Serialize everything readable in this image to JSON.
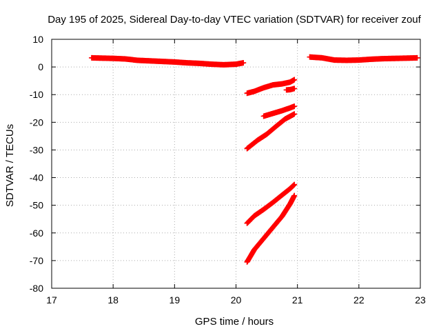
{
  "chart_data": {
    "type": "scatter",
    "title": "Day 195 of 2025, Sidereal Day-to-day VTEC variation (SDTVAR) for receiver zouf",
    "xlabel": "GPS time / hours",
    "ylabel": "SDTVAR / TECUs",
    "xlim": [
      17,
      23
    ],
    "ylim": [
      -80,
      10
    ],
    "xticks": [
      "17",
      "18",
      "19",
      "20",
      "21",
      "22",
      "23"
    ],
    "yticks": [
      "10",
      "0",
      "-10",
      "-20",
      "-30",
      "-40",
      "-50",
      "-60",
      "-70",
      "-80"
    ],
    "grid": true,
    "marker": "plus",
    "color": "#ff0000",
    "series": [
      {
        "x": [
          17.65,
          17.8,
          18.0,
          18.2,
          18.4,
          18.6,
          18.8,
          19.0,
          19.2,
          19.4,
          19.6,
          19.8,
          20.0,
          20.12
        ],
        "y": [
          3.3,
          3.2,
          3.1,
          2.9,
          2.4,
          2.2,
          2.0,
          1.8,
          1.5,
          1.3,
          1.0,
          0.8,
          1.0,
          1.5
        ]
      },
      {
        "x": [
          21.2,
          21.4,
          21.6,
          21.8,
          22.0,
          22.2,
          22.4,
          22.6,
          22.8,
          22.95
        ],
        "y": [
          3.6,
          3.3,
          2.5,
          2.4,
          2.5,
          2.8,
          3.0,
          3.1,
          3.2,
          3.3
        ]
      },
      {
        "x": [
          20.18,
          20.3,
          20.45,
          20.6,
          20.75,
          20.88,
          20.95
        ],
        "y": [
          -9.5,
          -8.8,
          -7.5,
          -6.5,
          -6.1,
          -5.5,
          -4.6
        ]
      },
      {
        "x": [
          20.82,
          20.88,
          20.95
        ],
        "y": [
          -8.3,
          -8.2,
          -7.8
        ]
      },
      {
        "x": [
          20.45,
          20.6,
          20.75,
          20.88,
          20.95
        ],
        "y": [
          -17.8,
          -16.8,
          -15.8,
          -14.8,
          -14.2
        ]
      },
      {
        "x": [
          20.18,
          20.35,
          20.5,
          20.65,
          20.8,
          20.95
        ],
        "y": [
          -29.5,
          -26.5,
          -24.3,
          -21.5,
          -18.8,
          -17.0
        ]
      },
      {
        "x": [
          20.18,
          20.3,
          20.45,
          20.6,
          20.75,
          20.88,
          20.95
        ],
        "y": [
          -56.5,
          -53.8,
          -51.5,
          -49.0,
          -46.3,
          -44.0,
          -42.5
        ]
      },
      {
        "x": [
          20.18,
          20.3,
          20.45,
          20.6,
          20.75,
          20.88,
          20.95
        ],
        "y": [
          -70.5,
          -66.0,
          -62.0,
          -58.0,
          -54.0,
          -49.5,
          -46.5
        ]
      }
    ]
  }
}
